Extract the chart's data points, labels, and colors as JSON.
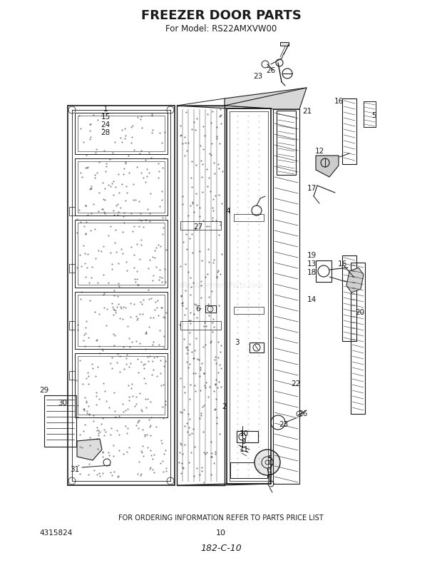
{
  "title": "FREEZER DOOR PARTS",
  "subtitle": "For Model: RS22AMXVW00",
  "footer_text": "FOR ORDERING INFORMATION REFER TO PARTS PRICE LIST",
  "part_number": "4315824",
  "page_number": "10",
  "code": "182-C-10",
  "bg_color": "#ffffff",
  "line_color": "#1a1a1a",
  "title_fontsize": 13,
  "subtitle_fontsize": 8.5,
  "watermark": "eReplacementParts.com"
}
